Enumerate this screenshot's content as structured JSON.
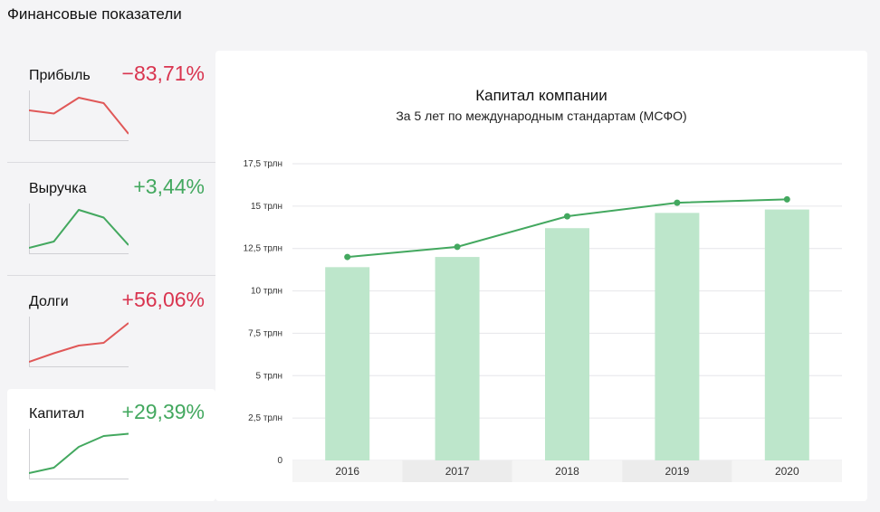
{
  "page": {
    "title": "Финансовые показатели"
  },
  "metrics": [
    {
      "label": "Прибыль",
      "change": "−83,71%",
      "trend": "negative",
      "color": "#e05858",
      "spark": [
        0.62,
        0.55,
        0.9,
        0.78,
        0.1
      ]
    },
    {
      "label": "Выручка",
      "change": "+3,44%",
      "trend": "positive",
      "color": "#43a85f",
      "spark": [
        0.08,
        0.22,
        0.92,
        0.75,
        0.14
      ]
    },
    {
      "label": "Долги",
      "change": "+56,06%",
      "trend": "negative",
      "color": "#e05858",
      "spark": [
        0.06,
        0.25,
        0.42,
        0.48,
        0.92
      ]
    },
    {
      "label": "Капитал",
      "change": "+29,39%",
      "trend": "positive",
      "color": "#43a85f",
      "spark": [
        0.08,
        0.2,
        0.66,
        0.9,
        0.95
      ]
    }
  ],
  "active_metric": 3,
  "chart_data": {
    "type": "bar",
    "title": "Капитал компании",
    "subtitle": "За 5 лет по международным стандартам (МСФО)",
    "categories": [
      "2016",
      "2017",
      "2018",
      "2019",
      "2020"
    ],
    "series": [
      {
        "type": "bar",
        "values": [
          11.4,
          12.0,
          13.7,
          14.6,
          14.8
        ],
        "color": "#bde6cb"
      },
      {
        "type": "line",
        "values": [
          12.0,
          12.6,
          14.4,
          15.2,
          15.4
        ],
        "color": "#43a85f"
      }
    ],
    "ylim": [
      0,
      17.5
    ],
    "yticks": [
      0,
      2.5,
      5,
      7.5,
      10,
      12.5,
      15,
      17.5
    ],
    "ytick_labels": [
      "0",
      "2,5 трлн",
      "5 трлн",
      "7,5 трлн",
      "10 трлн",
      "12,5 трлн",
      "15 трлн",
      "17,5 трлн"
    ],
    "grid": true
  }
}
